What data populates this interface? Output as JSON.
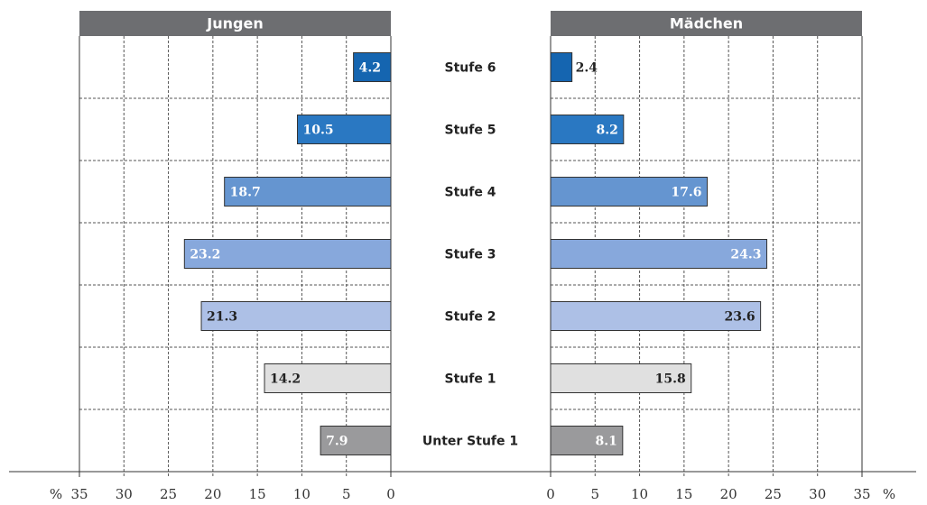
{
  "chart_data": {
    "type": "bar",
    "categories": [
      "Stufe 6",
      "Stufe 5",
      "Stufe 4",
      "Stufe 3",
      "Stufe 2",
      "Stufe 1",
      "Unter Stufe 1"
    ],
    "colors": [
      "#1565b0",
      "#2a78c2",
      "#6595d0",
      "#87a8dc",
      "#adc0e6",
      "#e0e0e0",
      "#9a9a9c"
    ],
    "series": [
      {
        "name": "Jungen",
        "values": [
          4.2,
          10.5,
          18.7,
          23.2,
          21.3,
          14.2,
          7.9
        ]
      },
      {
        "name": "Mädchen",
        "values": [
          2.4,
          8.2,
          17.6,
          24.3,
          23.6,
          15.8,
          8.1
        ]
      }
    ],
    "xlim": [
      0,
      35
    ],
    "xticks": [
      0,
      5,
      10,
      15,
      20,
      25,
      30,
      35
    ],
    "x_unit": "%",
    "grid": true
  }
}
